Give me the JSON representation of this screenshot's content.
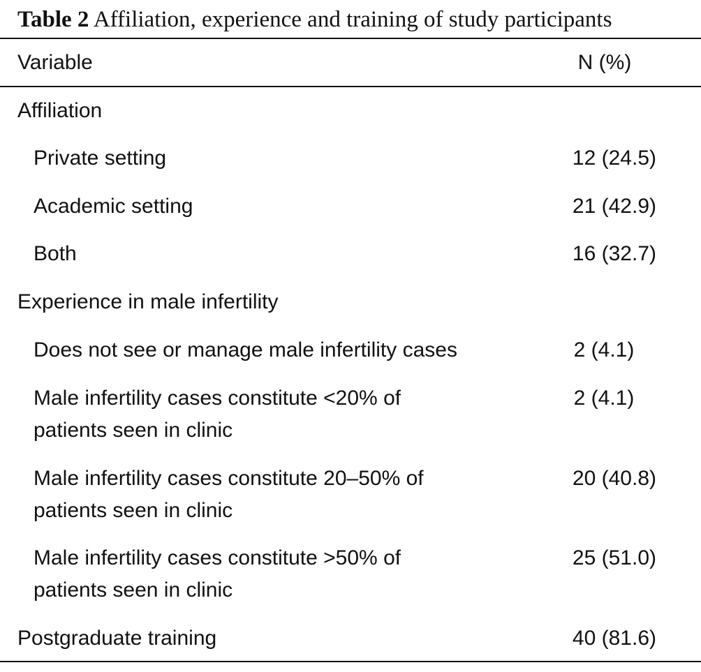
{
  "caption": {
    "label": "Table 2",
    "text": " Affiliation, experience and training of study participants"
  },
  "header": {
    "variable": "Variable",
    "n": "N (%)"
  },
  "rows": [
    {
      "label": "Affiliation",
      "value": ""
    },
    {
      "label": "Private setting",
      "value": "12 (24.5)"
    },
    {
      "label": "Academic setting",
      "value": "21 (42.9)"
    },
    {
      "label": "Both",
      "value": "16 (32.7)"
    },
    {
      "label": "Experience in male infertility",
      "value": ""
    },
    {
      "label": "Does not see or manage male infertility cases",
      "value": "2 (4.1)"
    },
    {
      "label_line1": "Male infertility cases constitute <20% of",
      "label_line2": "patients seen in clinic",
      "value": "2 (4.1)"
    },
    {
      "label_line1": "Male infertility cases constitute 20–50% of",
      "label_line2": "patients seen in clinic",
      "value": "20 (40.8)"
    },
    {
      "label_line1": "Male infertility cases constitute >50% of",
      "label_line2": "patients seen in clinic",
      "value": "25 (51.0)"
    },
    {
      "label": "Postgraduate training",
      "value": "40 (81.6)"
    }
  ]
}
